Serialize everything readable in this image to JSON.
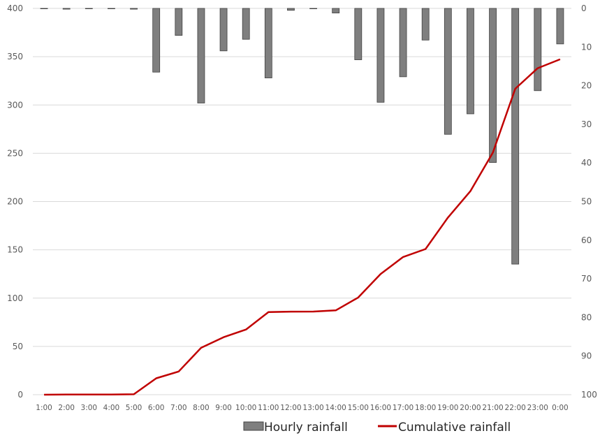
{
  "chart_data": {
    "type": "bar",
    "categories": [
      "1:00",
      "2:00",
      "3:00",
      "4:00",
      "5:00",
      "6:00",
      "7:00",
      "8:00",
      "9:00",
      "10:00",
      "11:00",
      "12:00",
      "13:00",
      "14:00",
      "15:00",
      "16:00",
      "17:00",
      "18:00",
      "19:00",
      "20:00",
      "21:00",
      "22:00",
      "23:00",
      "0:00"
    ],
    "series": [
      {
        "name": "Hourly rainfall",
        "type": "bar",
        "axis": "right-reversed",
        "color": "#7f7f7f",
        "values": [
          0,
          0.2,
          0,
          0,
          0.2,
          16.5,
          7,
          24.5,
          11,
          8,
          18,
          0.5,
          0.1,
          1.2,
          13.3,
          24.3,
          17.7,
          8.2,
          32.6,
          27.3,
          39.9,
          66.2,
          21.3,
          9.2
        ]
      },
      {
        "name": "Cumulative rainfall",
        "type": "line",
        "axis": "left",
        "color": "#c00000",
        "values": [
          0,
          0.2,
          0.2,
          0.2,
          0.4,
          17,
          24,
          48.5,
          59.5,
          67.5,
          85.5,
          86,
          86.1,
          87.3,
          100.6,
          124.9,
          142.6,
          150.8,
          183.4,
          210.7,
          250.6,
          316.8,
          338.1,
          347.3
        ]
      }
    ],
    "y_left": {
      "min": 0,
      "max": 400,
      "ticks": [
        0,
        50,
        100,
        150,
        200,
        250,
        300,
        350,
        400
      ]
    },
    "y_right": {
      "min": 0,
      "max": 100,
      "reversed": true,
      "ticks": [
        0,
        10,
        20,
        30,
        40,
        50,
        60,
        70,
        80,
        90,
        100
      ]
    },
    "grid": true,
    "legend_position": "bottom"
  }
}
